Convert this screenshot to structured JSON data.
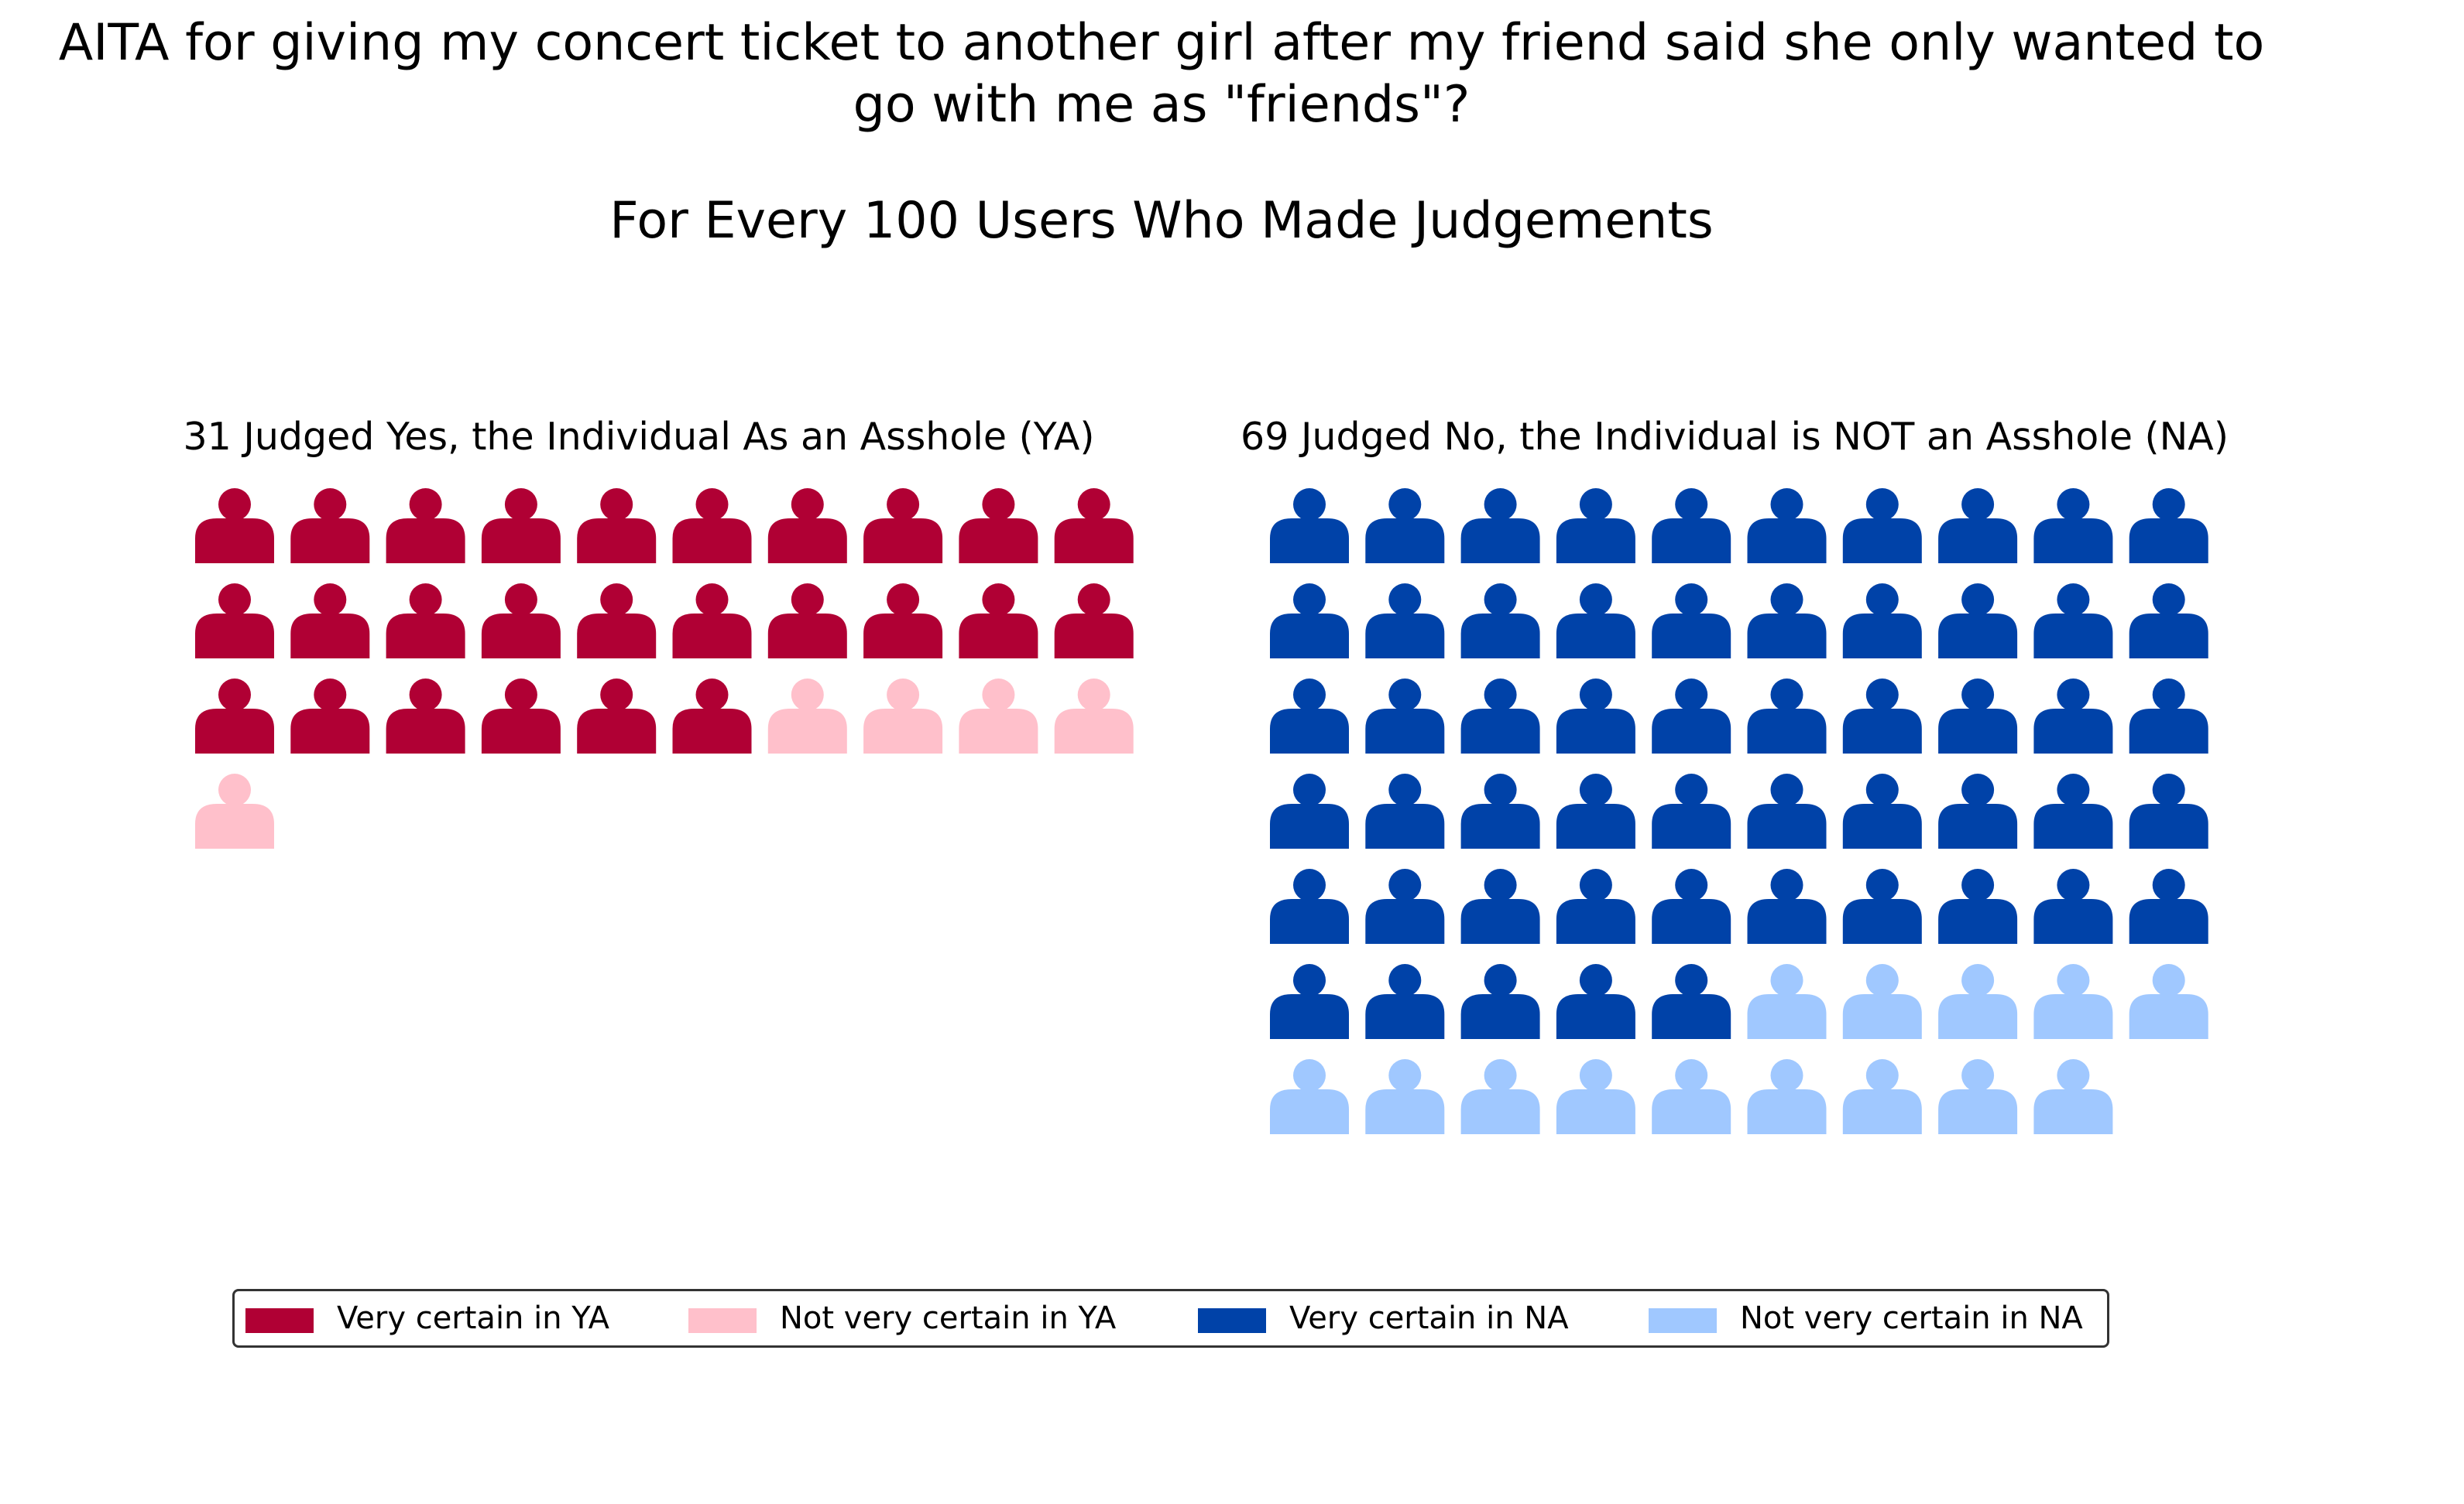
{
  "chart_data": {
    "type": "waffle",
    "title_line1": "AITA for giving my concert ticket to another girl after my friend said she only wanted to",
    "title_line2": "go with me as \"friends\"?",
    "subtitle": "For Every 100 Users Who Made Judgements",
    "units_per_row": 10,
    "panels": [
      {
        "title": "31 Judged Yes, the Individual As an Asshole (YA)",
        "total": 31,
        "segments": [
          {
            "name": "Very certain in YA",
            "count": 26,
            "color": "#b00034"
          },
          {
            "name": "Not very certain in YA",
            "count": 5,
            "color": "#ffc0cb"
          }
        ]
      },
      {
        "title": "69 Judged No, the Individual is NOT an Asshole (NA)",
        "total": 69,
        "segments": [
          {
            "name": "Very certain in NA",
            "count": 55,
            "color": "#0042a8"
          },
          {
            "name": "Not very certain in NA",
            "count": 14,
            "color": "#a0c8ff"
          }
        ]
      }
    ],
    "legend": [
      {
        "label": "Very certain in YA",
        "color": "#b00034"
      },
      {
        "label": "Not very certain in YA",
        "color": "#ffc0cb"
      },
      {
        "label": "Very certain in NA",
        "color": "#0042a8"
      },
      {
        "label": "Not very certain in NA",
        "color": "#a0c8ff"
      }
    ],
    "legend_position": "bottom",
    "icon": "person-icon"
  }
}
